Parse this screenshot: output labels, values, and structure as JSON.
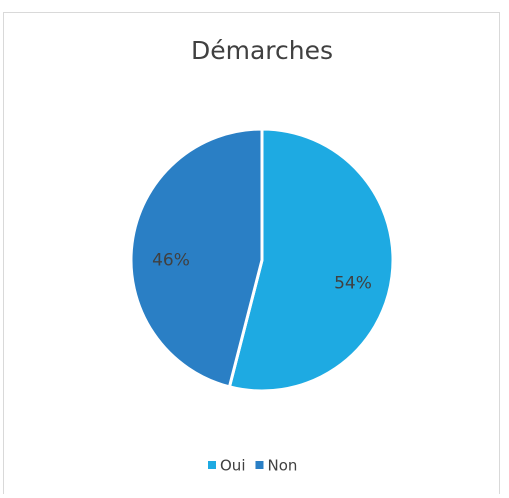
{
  "chart_data": {
    "type": "pie",
    "title": "Démarches",
    "categories": [
      "Oui",
      "Non"
    ],
    "values": [
      54,
      46
    ],
    "value_labels": [
      "54%",
      "46%"
    ],
    "colors": [
      "#1eaae2",
      "#2a7fc5"
    ],
    "legend": "bottom"
  }
}
